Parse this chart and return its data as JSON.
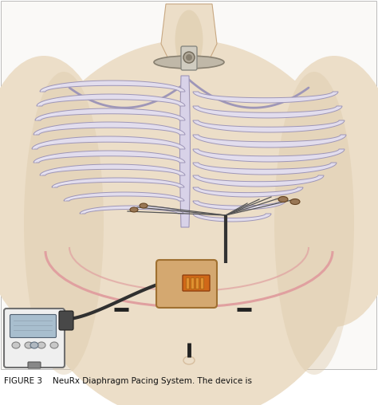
{
  "caption": "FIGURE 3    NeuRx Diaphragm Pacing System. The device is",
  "bg_color": "#ffffff",
  "fig_bg": "#faf9f7",
  "fig_width": 4.74,
  "fig_height": 5.08,
  "dpi": 100,
  "border_color": "#bbbbbb",
  "skin_light": "#ecdec8",
  "skin_mid": "#dcc9a8",
  "skin_dark": "#c8a882",
  "skin_shadow": "#b89060",
  "rib_fill": "#e2dded",
  "rib_edge": "#9e96b8",
  "rib_highlight": "#f0eef8",
  "sternum_fill": "#d8d2e8",
  "device_fill": "#d4a870",
  "device_edge": "#a07030",
  "connector_fill": "#cc7020",
  "pm_fill": "#e8e8e8",
  "pm_edge": "#888888",
  "pm_screen": "#aabbc8",
  "wire_color": "#404040",
  "cable_color": "#303030",
  "diaphragm_color": "#e0a0a0",
  "collar_fill": "#c8c8c8",
  "collar_edge": "#888888",
  "caption_fontsize": 7.5,
  "caption_color": "#111111"
}
